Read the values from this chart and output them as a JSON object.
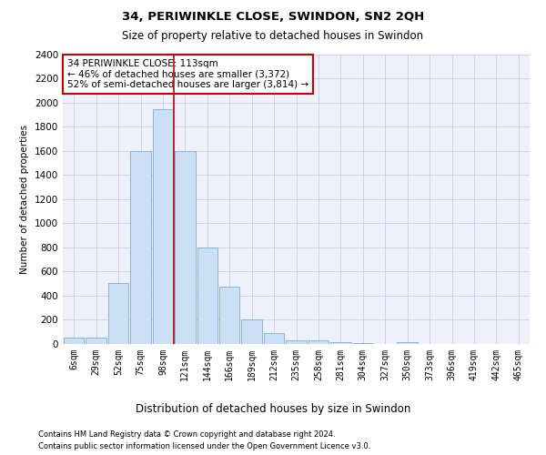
{
  "title1": "34, PERIWINKLE CLOSE, SWINDON, SN2 2QH",
  "title2": "Size of property relative to detached houses in Swindon",
  "xlabel": "Distribution of detached houses by size in Swindon",
  "ylabel": "Number of detached properties",
  "bin_labels": [
    "6sqm",
    "29sqm",
    "52sqm",
    "75sqm",
    "98sqm",
    "121sqm",
    "144sqm",
    "166sqm",
    "189sqm",
    "212sqm",
    "235sqm",
    "258sqm",
    "281sqm",
    "304sqm",
    "327sqm",
    "350sqm",
    "373sqm",
    "396sqm",
    "419sqm",
    "442sqm",
    "465sqm"
  ],
  "bar_heights": [
    50,
    50,
    500,
    1600,
    1950,
    1600,
    800,
    470,
    200,
    90,
    30,
    25,
    15,
    5,
    0,
    15,
    0,
    0,
    0,
    0,
    0
  ],
  "bar_color": "#cce0f5",
  "bar_edgecolor": "#7aaed4",
  "vline_x_idx": 4,
  "vline_color": "#cc0000",
  "ylim": [
    0,
    2400
  ],
  "yticks": [
    0,
    200,
    400,
    600,
    800,
    1000,
    1200,
    1400,
    1600,
    1800,
    2000,
    2200,
    2400
  ],
  "grid_color": "#c8cde8",
  "annotation_text": "34 PERIWINKLE CLOSE: 113sqm\n← 46% of detached houses are smaller (3,372)\n52% of semi-detached houses are larger (3,814) →",
  "annotation_box_edgecolor": "#cc0000",
  "footer1": "Contains HM Land Registry data © Crown copyright and database right 2024.",
  "footer2": "Contains public sector information licensed under the Open Government Licence v3.0.",
  "bg_color": "#ffffff",
  "plot_bg_color": "#eef1fa"
}
